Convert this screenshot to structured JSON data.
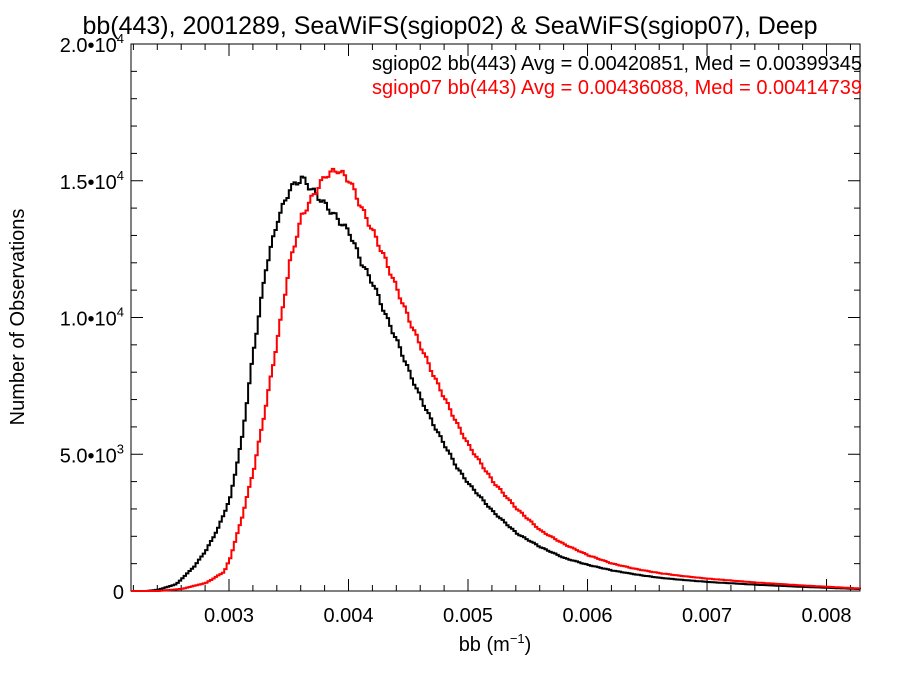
{
  "chart_data": {
    "type": "line",
    "title": "bb(443), 2001289, SeaWiFS(sgiop02) & SeaWiFS(sgiop07), Deep",
    "xlabel_base": "bb (m",
    "xlabel_sup": "−1",
    "xlabel_end": ")",
    "ylabel": "Number of Observations",
    "xlim": [
      0.00218,
      0.00828
    ],
    "ylim": [
      0,
      20000
    ],
    "xticks": [
      {
        "value": 0.003,
        "label": "0.003"
      },
      {
        "value": 0.004,
        "label": "0.004"
      },
      {
        "value": 0.005,
        "label": "0.005"
      },
      {
        "value": 0.006,
        "label": "0.006"
      },
      {
        "value": 0.007,
        "label": "0.007"
      },
      {
        "value": 0.008,
        "label": "0.008"
      }
    ],
    "yticks": [
      {
        "value": 0,
        "base": "0",
        "exp": ""
      },
      {
        "value": 5000,
        "base": "5.0•10",
        "exp": "3"
      },
      {
        "value": 10000,
        "base": "1.0•10",
        "exp": "4"
      },
      {
        "value": 15000,
        "base": "1.5•10",
        "exp": "4"
      },
      {
        "value": 20000,
        "base": "2.0•10",
        "exp": "4"
      }
    ],
    "series": [
      {
        "name": "sgiop02 bb(443) Avg = 0.00420851, Med = 0.00399345",
        "color": "#000000",
        "x": [
          0.00218,
          0.0023,
          0.0024,
          0.00255,
          0.0027,
          0.0028,
          0.0029,
          0.003,
          0.0031,
          0.0032,
          0.0033,
          0.0034,
          0.0035,
          0.0036,
          0.0037,
          0.0038,
          0.0039,
          0.004,
          0.0041,
          0.0042,
          0.0043,
          0.0044,
          0.0045,
          0.0046,
          0.0047,
          0.0048,
          0.0049,
          0.005,
          0.0052,
          0.0054,
          0.0056,
          0.0058,
          0.006,
          0.0062,
          0.0064,
          0.0066,
          0.0068,
          0.007,
          0.0074,
          0.0078,
          0.00828
        ],
        "y": [
          0,
          0,
          50,
          250,
          900,
          1500,
          2300,
          3400,
          5600,
          8900,
          11800,
          13600,
          14700,
          15100,
          14600,
          14100,
          13600,
          13100,
          12000,
          11200,
          10100,
          9100,
          8000,
          7000,
          6100,
          5300,
          4500,
          3900,
          2900,
          2100,
          1600,
          1200,
          950,
          750,
          600,
          480,
          400,
          330,
          230,
          150,
          70
        ]
      },
      {
        "name": "sgiop07 bb(443) Avg = 0.00436088, Med = 0.00414739",
        "color": "#ff0000",
        "x": [
          0.00218,
          0.0024,
          0.0026,
          0.0028,
          0.00295,
          0.003,
          0.0031,
          0.0032,
          0.0033,
          0.0034,
          0.0035,
          0.0036,
          0.0037,
          0.0038,
          0.0039,
          0.004,
          0.0041,
          0.0042,
          0.0043,
          0.0044,
          0.0045,
          0.0046,
          0.0047,
          0.0048,
          0.0049,
          0.005,
          0.0052,
          0.0054,
          0.0056,
          0.0058,
          0.006,
          0.0062,
          0.0064,
          0.0066,
          0.0068,
          0.007,
          0.0074,
          0.0078,
          0.00828
        ],
        "y": [
          0,
          0,
          80,
          300,
          700,
          1200,
          2700,
          4500,
          6800,
          9300,
          12000,
          13700,
          14500,
          15200,
          15400,
          15000,
          14000,
          13100,
          12100,
          11000,
          9900,
          8900,
          7900,
          7000,
          6100,
          5300,
          4000,
          3000,
          2200,
          1700,
          1300,
          1000,
          800,
          650,
          540,
          450,
          310,
          200,
          90
        ]
      }
    ]
  }
}
